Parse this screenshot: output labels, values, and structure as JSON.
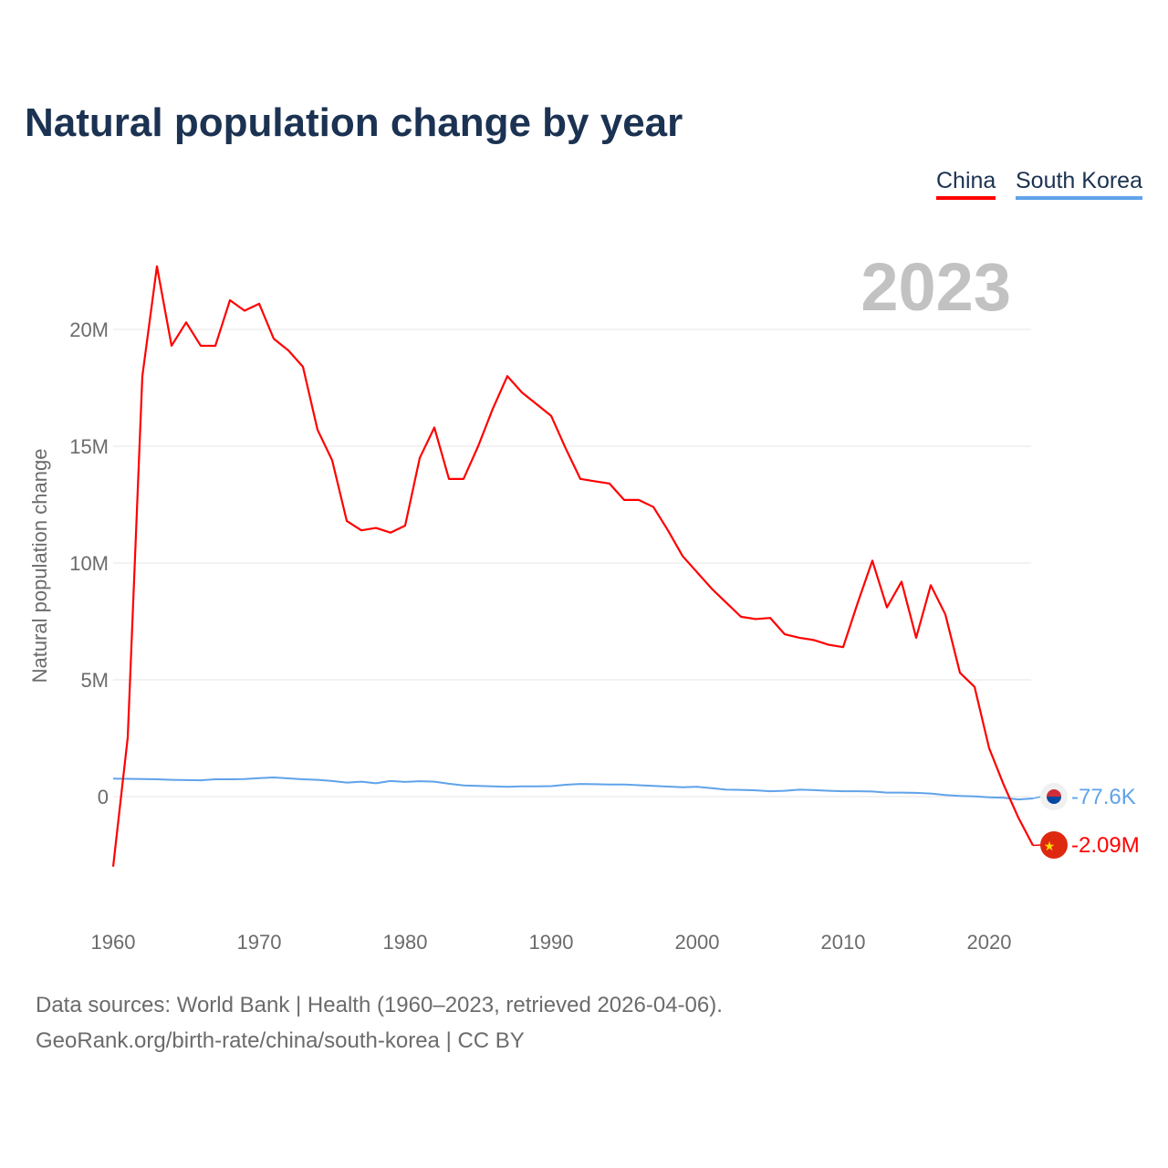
{
  "chart_data": {
    "type": "line",
    "title": "Natural population change by year",
    "ylabel": "Natural population change",
    "xlabel": "",
    "year_label": "2023",
    "x": [
      1960,
      1961,
      1962,
      1963,
      1964,
      1965,
      1966,
      1967,
      1968,
      1969,
      1970,
      1971,
      1972,
      1973,
      1974,
      1975,
      1976,
      1977,
      1978,
      1979,
      1980,
      1981,
      1982,
      1983,
      1984,
      1985,
      1986,
      1987,
      1988,
      1989,
      1990,
      1991,
      1992,
      1993,
      1994,
      1995,
      1996,
      1997,
      1998,
      1999,
      2000,
      2001,
      2002,
      2003,
      2004,
      2005,
      2006,
      2007,
      2008,
      2009,
      2010,
      2011,
      2012,
      2013,
      2014,
      2015,
      2016,
      2017,
      2018,
      2019,
      2020,
      2021,
      2022,
      2023
    ],
    "xlim": [
      1960,
      2023
    ],
    "ylim": [
      -4000000,
      23500000
    ],
    "xticks": [
      "1960",
      "1970",
      "1980",
      "1990",
      "2000",
      "2010",
      "2020"
    ],
    "yticks": [
      {
        "value": 0,
        "label": "0"
      },
      {
        "value": 5000000,
        "label": "5M"
      },
      {
        "value": 10000000,
        "label": "10M"
      },
      {
        "value": 15000000,
        "label": "15M"
      },
      {
        "value": 20000000,
        "label": "20M"
      }
    ],
    "grid": true,
    "legend_position": "top-right",
    "series": [
      {
        "name": "China",
        "color": "#ff0000",
        "end_label": "-2.09M",
        "flag": "china-flag",
        "values": [
          -3.0,
          2.54,
          18.0,
          22.7,
          19.3,
          20.3,
          19.3,
          19.3,
          21.25,
          20.8,
          21.1,
          19.6,
          19.1,
          18.4,
          15.7,
          14.4,
          11.8,
          11.4,
          11.5,
          11.3,
          11.6,
          14.5,
          15.8,
          13.6,
          13.6,
          15.0,
          16.6,
          18.0,
          17.3,
          16.8,
          16.3,
          14.9,
          13.6,
          13.5,
          13.4,
          12.7,
          12.7,
          12.4,
          11.4,
          10.3,
          9.6,
          8.9,
          8.3,
          7.7,
          7.6,
          7.65,
          6.95,
          6.8,
          6.7,
          6.5,
          6.4,
          8.3,
          10.1,
          8.1,
          9.2,
          6.8,
          9.05,
          7.8,
          5.3,
          4.7,
          2.07,
          0.5,
          -0.9,
          -2.09
        ]
      },
      {
        "name": "South Korea",
        "color": "#5fa3ea",
        "end_label": "-77.6K",
        "flag": "south-korea-flag",
        "values": [
          0.77,
          0.76,
          0.75,
          0.74,
          0.72,
          0.71,
          0.7,
          0.74,
          0.74,
          0.75,
          0.79,
          0.82,
          0.78,
          0.74,
          0.72,
          0.67,
          0.6,
          0.64,
          0.57,
          0.67,
          0.63,
          0.66,
          0.64,
          0.55,
          0.48,
          0.46,
          0.44,
          0.42,
          0.44,
          0.44,
          0.45,
          0.51,
          0.54,
          0.53,
          0.52,
          0.52,
          0.49,
          0.46,
          0.43,
          0.4,
          0.42,
          0.36,
          0.3,
          0.29,
          0.27,
          0.23,
          0.25,
          0.3,
          0.28,
          0.25,
          0.23,
          0.23,
          0.22,
          0.17,
          0.17,
          0.16,
          0.13,
          0.07,
          0.03,
          0.01,
          -0.03,
          -0.05,
          -0.12,
          -0.0776
        ]
      }
    ],
    "value_unit": "millions"
  },
  "footer": {
    "sources": "Data sources: World Bank | Health (1960–2023, retrieved 2026-04-06).",
    "credit": "GeoRank.org/birth-rate/china/south-korea | CC BY"
  }
}
